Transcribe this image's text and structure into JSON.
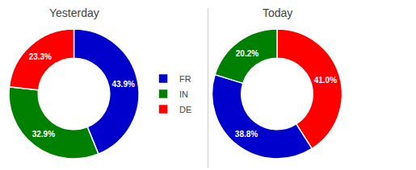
{
  "chart_data": [
    {
      "type": "pie",
      "title": "Yesterday",
      "categories": [
        "FR",
        "IN",
        "DE"
      ],
      "values": [
        43.9,
        32.9,
        23.3
      ],
      "value_labels": [
        "43.9%",
        "32.9%",
        "23.3%"
      ],
      "colors": [
        "#0000cd",
        "#008000",
        "#ff0000"
      ],
      "data_labels": true,
      "legend": "right"
    },
    {
      "type": "pie",
      "title": "Today",
      "categories": [
        "DE",
        "FR",
        "IN"
      ],
      "values": [
        41.0,
        38.8,
        20.2
      ],
      "value_labels": [
        "41.0%",
        "38.8%",
        "20.2%"
      ],
      "colors": [
        "#ff0000",
        "#0000cd",
        "#008000"
      ],
      "data_labels": true,
      "legend": "right"
    }
  ]
}
